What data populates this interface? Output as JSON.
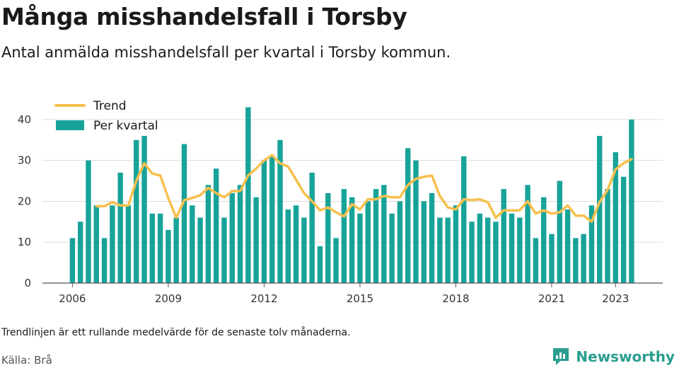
{
  "title": "Många misshandelsfall i Torsby",
  "subtitle": "Antal anmälda misshandelsfall per kvartal i Torsby kommun.",
  "footnote": "Trendlinjen är ett rullande medelvärde för de senaste tolv månaderna.",
  "source": "Källa: Brå",
  "brand": {
    "name": "Newsworthy",
    "icon": "newsworthy-logo-icon"
  },
  "colors": {
    "bars": "#17a399",
    "trend": "#f6c04e",
    "grid": "#dddddd"
  },
  "chart_data": {
    "type": "bar",
    "x_start": "2006 Q1",
    "x_tick_labels": [
      "2006",
      "2009",
      "2012",
      "2015",
      "2018",
      "2021",
      "2023"
    ],
    "y_ticks": [
      0,
      10,
      20,
      30,
      40
    ],
    "ylim": [
      0,
      45
    ],
    "grid": "horizontal",
    "legend": {
      "placement": "top-left",
      "entries": [
        "Trend",
        "Per kvartal"
      ]
    },
    "series": [
      {
        "name": "Per kvartal",
        "type": "bar",
        "values": [
          11,
          15,
          30,
          19,
          11,
          19,
          27,
          19,
          35,
          36,
          17,
          17,
          13,
          16,
          34,
          19,
          16,
          24,
          28,
          16,
          22,
          24,
          43,
          21,
          30,
          31,
          35,
          18,
          19,
          16,
          27,
          9,
          22,
          11,
          23,
          21,
          17,
          20,
          23,
          24,
          17,
          20,
          33,
          30,
          20,
          22,
          16,
          16,
          19,
          31,
          15,
          17,
          16,
          15,
          23,
          17,
          16,
          24,
          11,
          21,
          12,
          25,
          18,
          11,
          12,
          19,
          36,
          23,
          32,
          26,
          40
        ]
      },
      {
        "name": "Trend",
        "type": "line",
        "values": [
          null,
          null,
          null,
          18.8,
          18.8,
          19.8,
          19.0,
          19.0,
          25.0,
          29.3,
          26.8,
          26.3,
          20.8,
          16.0,
          20.3,
          20.8,
          21.5,
          23.3,
          22.0,
          21.0,
          22.5,
          22.5,
          26.3,
          28.0,
          30.0,
          31.3,
          29.3,
          28.5,
          25.3,
          22.0,
          20.0,
          17.8,
          18.5,
          17.3,
          16.3,
          19.3,
          18.0,
          20.5,
          20.5,
          21.3,
          21.0,
          21.0,
          24.0,
          25.5,
          26.0,
          26.3,
          21.3,
          18.5,
          18.0,
          20.5,
          20.3,
          20.5,
          19.8,
          16.0,
          17.8,
          17.8,
          17.8,
          20.0,
          17.0,
          17.8,
          17.0,
          17.3,
          19.0,
          16.5,
          16.5,
          15.0,
          19.8,
          22.8,
          27.8,
          29.3,
          30.3
        ]
      }
    ]
  }
}
